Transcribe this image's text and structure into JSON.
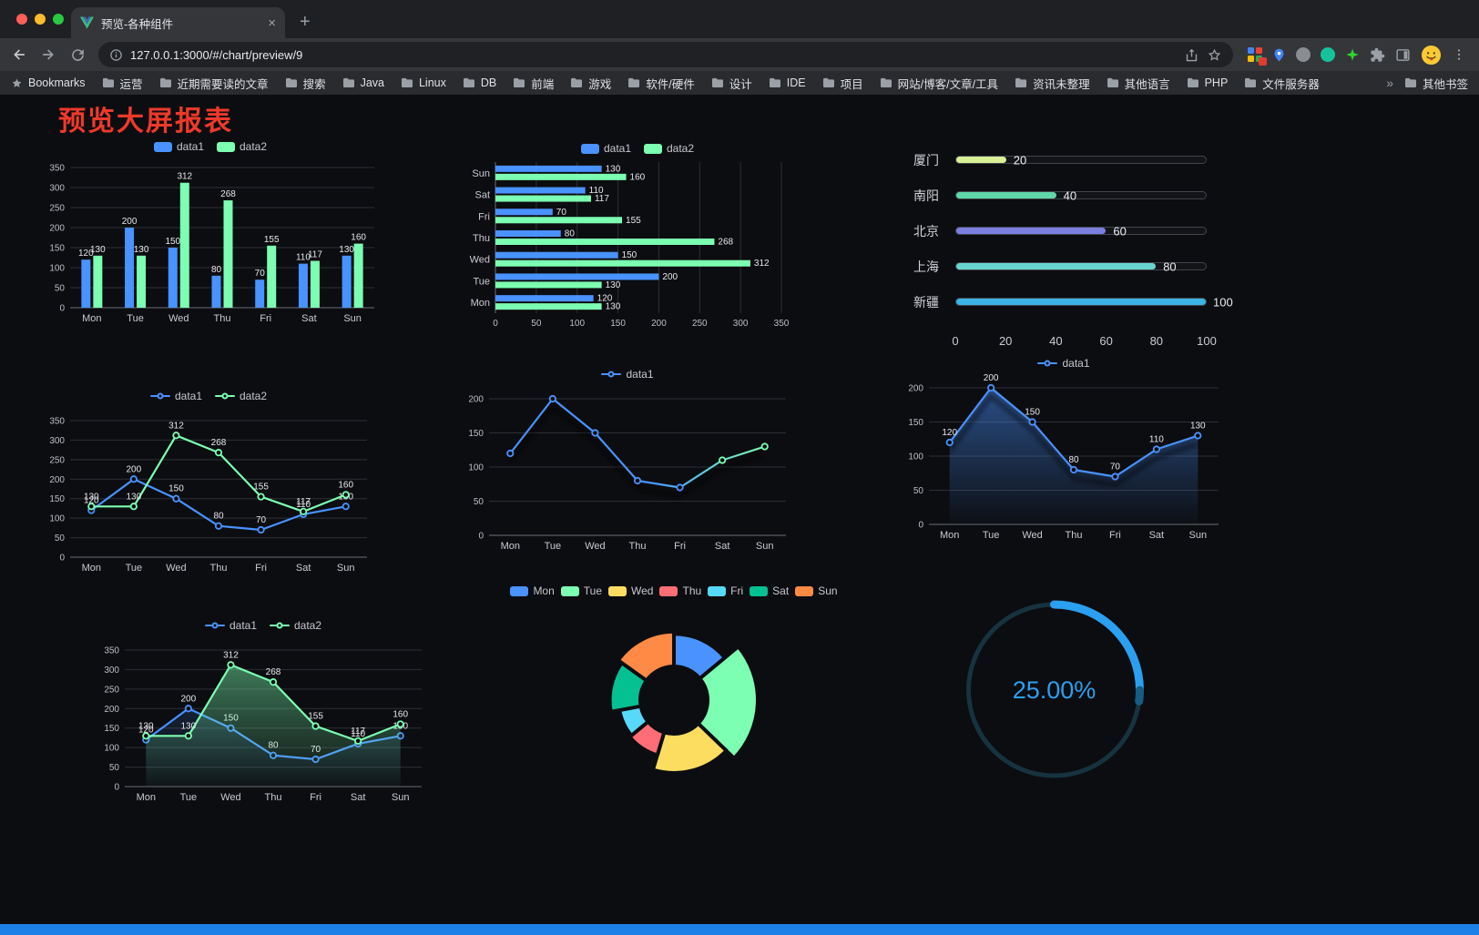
{
  "browser": {
    "tab_title": "预览-各种组件",
    "new_tab_button": "+",
    "url": "127.0.0.1:3000/#/chart/preview/9",
    "bookmarks_bar": {
      "first_item": "Bookmarks",
      "folders": [
        "运营",
        "近期需要读的文章",
        "搜索",
        "Java",
        "Linux",
        "DB",
        "前端",
        "游戏",
        "软件/硬件",
        "设计",
        "IDE",
        "项目",
        "网站/博客/文章/工具",
        "资讯未整理",
        "其他语言",
        "PHP",
        "文件服务器"
      ],
      "overflow_chevron": "»",
      "other_bookmarks": "其他书签"
    }
  },
  "page": {
    "title": "预览大屏报表",
    "title_color": "#ee392b",
    "accent_bar_color": "#1d80e8",
    "background": "#0c0d10"
  },
  "chart_data": [
    {
      "id": "grouped-bar",
      "type": "bar",
      "categories": [
        "Mon",
        "Tue",
        "Wed",
        "Thu",
        "Fri",
        "Sat",
        "Sun"
      ],
      "series": [
        {
          "name": "data1",
          "color": "#4992ff",
          "values": [
            120,
            200,
            150,
            80,
            70,
            110,
            130
          ]
        },
        {
          "name": "data2",
          "color": "#7cffb2",
          "values": [
            130,
            130,
            312,
            268,
            155,
            117,
            160
          ]
        }
      ],
      "ylim": [
        0,
        350
      ],
      "yticks": [
        0,
        50,
        100,
        150,
        200,
        250,
        300,
        350
      ],
      "legend_position": "top",
      "show_labels": true
    },
    {
      "id": "grouped-horizontal-bar",
      "type": "hbar",
      "categories": [
        "Mon",
        "Tue",
        "Wed",
        "Thu",
        "Fri",
        "Sat",
        "Sun"
      ],
      "category_order": "reversed-top-to-bottom",
      "series": [
        {
          "name": "data1",
          "color": "#4992ff",
          "values": [
            120,
            200,
            150,
            80,
            70,
            110,
            130
          ]
        },
        {
          "name": "data2",
          "color": "#7cffb2",
          "values": [
            130,
            130,
            312,
            268,
            155,
            117,
            160
          ]
        }
      ],
      "xlim": [
        0,
        350
      ],
      "xticks": [
        0,
        50,
        100,
        150,
        200,
        250,
        300,
        350
      ],
      "legend_position": "top",
      "show_labels": true
    },
    {
      "id": "city-progress-bars",
      "type": "progress-bars",
      "max": 100,
      "rows": [
        {
          "label": "厦门",
          "value": 20,
          "color": "#d8f096"
        },
        {
          "label": "南阳",
          "value": 40,
          "color": "#5fd7a9"
        },
        {
          "label": "北京",
          "value": 60,
          "color": "#7b80e0"
        },
        {
          "label": "上海",
          "value": 80,
          "color": "#69d4cf"
        },
        {
          "label": "新疆",
          "value": 100,
          "color": "#3bb3e4"
        }
      ],
      "axis_ticks": [
        0,
        20,
        40,
        60,
        80,
        100
      ]
    },
    {
      "id": "two-series-line",
      "type": "line",
      "categories": [
        "Mon",
        "Tue",
        "Wed",
        "Thu",
        "Fri",
        "Sat",
        "Sun"
      ],
      "series": [
        {
          "name": "data1",
          "color": "#4992ff",
          "values": [
            120,
            200,
            150,
            80,
            70,
            110,
            130
          ]
        },
        {
          "name": "data2",
          "color": "#7cffb2",
          "values": [
            130,
            130,
            312,
            268,
            155,
            117,
            160
          ]
        }
      ],
      "ylim": [
        0,
        350
      ],
      "yticks": [
        0,
        50,
        100,
        150,
        200,
        250,
        300,
        350
      ],
      "legend_position": "top",
      "show_labels": true
    },
    {
      "id": "gradient-shadow-line",
      "type": "line",
      "categories": [
        "Mon",
        "Tue",
        "Wed",
        "Thu",
        "Fri",
        "Sat",
        "Sun"
      ],
      "series": [
        {
          "name": "data1",
          "color": "#4992ff",
          "color_end": "#7cffb2",
          "values": [
            120,
            200,
            150,
            80,
            70,
            110,
            130
          ]
        }
      ],
      "ylim": [
        0,
        200
      ],
      "yticks": [
        0,
        50,
        100,
        150,
        200
      ],
      "legend_position": "top",
      "show_labels": false,
      "shadow": true
    },
    {
      "id": "area-line",
      "type": "line",
      "categories": [
        "Mon",
        "Tue",
        "Wed",
        "Thu",
        "Fri",
        "Sat",
        "Sun"
      ],
      "series": [
        {
          "name": "data1",
          "color": "#4992ff",
          "values": [
            120,
            200,
            150,
            80,
            70,
            110,
            130
          ],
          "area": true,
          "area_opacity": 0.5
        }
      ],
      "ylim": [
        0,
        200
      ],
      "yticks": [
        0,
        50,
        100,
        150,
        200
      ],
      "legend_position": "top",
      "show_labels": true,
      "shadow": true
    },
    {
      "id": "two-series-area-line",
      "type": "line",
      "categories": [
        "Mon",
        "Tue",
        "Wed",
        "Thu",
        "Fri",
        "Sat",
        "Sun"
      ],
      "series": [
        {
          "name": "data1",
          "color": "#4992ff",
          "values": [
            120,
            200,
            150,
            80,
            70,
            110,
            130
          ],
          "area": true,
          "area_opacity": 0.15
        },
        {
          "name": "data2",
          "color": "#7cffb2",
          "values": [
            130,
            130,
            312,
            268,
            155,
            117,
            160
          ],
          "area": true,
          "area_opacity": 0.45
        }
      ],
      "ylim": [
        0,
        350
      ],
      "yticks": [
        0,
        50,
        100,
        150,
        200,
        250,
        300,
        350
      ],
      "legend_position": "top",
      "show_labels": true
    },
    {
      "id": "weekday-rose-pie",
      "type": "pie",
      "rose": true,
      "legend_position": "top",
      "slices": [
        {
          "name": "Mon",
          "value": 120,
          "color": "#4992ff"
        },
        {
          "name": "Tue",
          "value": 200,
          "color": "#7cffb2"
        },
        {
          "name": "Wed",
          "value": 150,
          "color": "#fddd60"
        },
        {
          "name": "Thu",
          "value": 80,
          "color": "#ff6e76"
        },
        {
          "name": "Fri",
          "value": 70,
          "color": "#58d9f9"
        },
        {
          "name": "Sat",
          "value": 110,
          "color": "#05c091"
        },
        {
          "name": "Sun",
          "value": 130,
          "color": "#ff8a45"
        }
      ]
    },
    {
      "id": "percentage-gauge",
      "type": "gauge",
      "value": 25,
      "display": "25.00%",
      "color": "#2b9ff0",
      "track_color": "#16333f"
    }
  ]
}
